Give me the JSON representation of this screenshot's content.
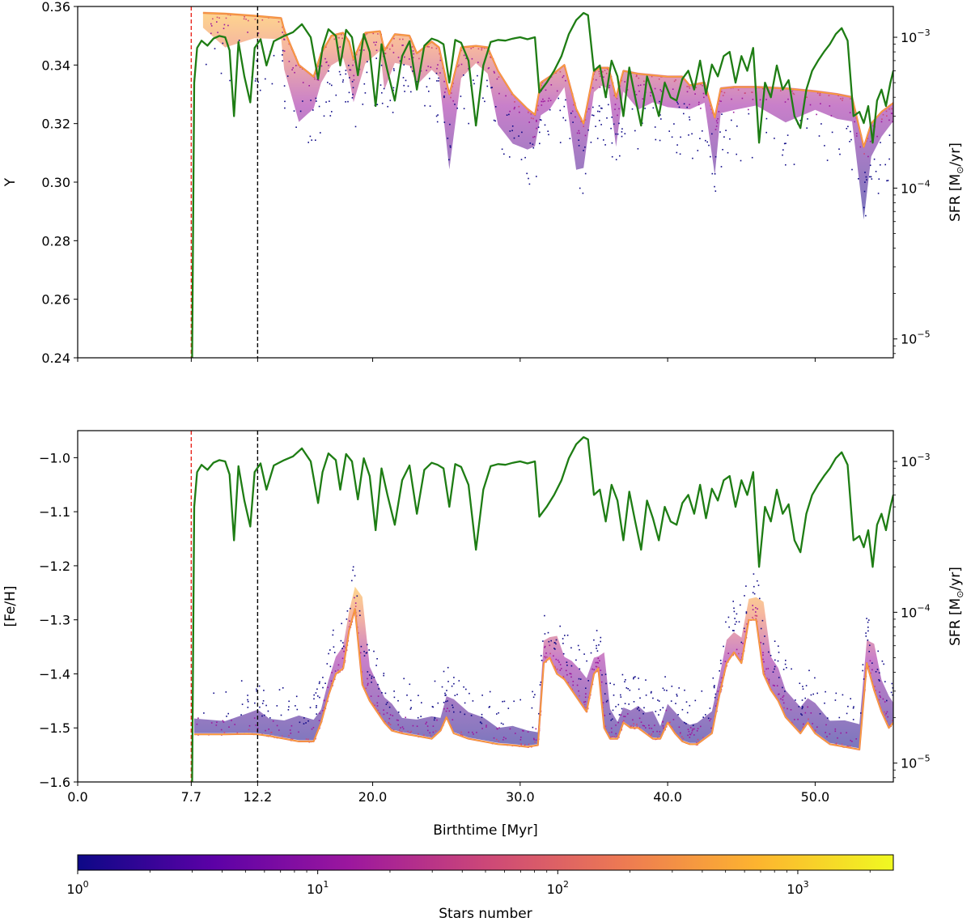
{
  "colors": {
    "sfr_line": "#1e7d14",
    "vline_red": "#e8241c",
    "vline_black": "#000000",
    "cmap": [
      "#0d0887",
      "#5c01a6",
      "#9c179e",
      "#cc4778",
      "#ed7953",
      "#fdb42f",
      "#f0f921"
    ]
  },
  "chart_data": [
    {
      "id": "top",
      "type": "line",
      "title": "",
      "xlabel": "",
      "ylabel": "Y",
      "y2label_prefix": "SFR [M",
      "y2label_unit": "/yr]",
      "xlim": [
        0,
        55.3
      ],
      "ylim": [
        0.24,
        0.36
      ],
      "yticks": [
        0.24,
        0.26,
        0.28,
        0.3,
        0.32,
        0.34,
        0.36
      ],
      "ytick_labels": [
        "0.24",
        "0.26",
        "0.28",
        "0.30",
        "0.32",
        "0.34",
        "0.36"
      ],
      "y2lim": [
        7.5e-06,
        0.0016
      ],
      "y2ticks": [
        1e-05,
        0.0001,
        0.001
      ],
      "y2tick_labels": [
        "10",
        "10",
        "10"
      ],
      "y2tick_exps": [
        "−5",
        "−4",
        "−3"
      ],
      "vlines": [
        7.7,
        12.2
      ],
      "sfr_series": {
        "name": "SFR",
        "x": [
          7.75,
          7.9,
          8.1,
          8.4,
          8.8,
          9.2,
          9.6,
          10.0,
          10.3,
          10.6,
          10.9,
          11.3,
          11.7,
          12.0,
          12.4,
          12.8,
          13.3,
          14.0,
          14.6,
          15.2,
          15.8,
          16.3,
          16.6,
          17.0,
          17.5,
          17.8,
          18.2,
          18.6,
          19.0,
          19.4,
          19.8,
          20.2,
          20.6,
          21.0,
          21.5,
          22.0,
          22.5,
          23.0,
          23.5,
          24.0,
          24.4,
          24.8,
          25.2,
          25.6,
          26.0,
          26.5,
          27.0,
          27.5,
          28.0,
          28.5,
          29.0,
          29.5,
          30.0,
          30.5,
          31.0,
          31.3,
          31.8,
          32.3,
          32.8,
          33.3,
          33.8,
          34.3,
          34.6,
          35.0,
          35.4,
          35.8,
          36.2,
          36.6,
          37.0,
          37.4,
          37.8,
          38.2,
          38.6,
          39.0,
          39.4,
          39.8,
          40.2,
          40.6,
          41.0,
          41.4,
          41.8,
          42.2,
          42.6,
          43.0,
          43.4,
          43.8,
          44.2,
          44.6,
          45.0,
          45.4,
          45.8,
          46.2,
          46.6,
          47.0,
          47.4,
          47.8,
          48.2,
          48.6,
          49.0,
          49.4,
          49.8,
          50.2,
          50.6,
          51.0,
          51.4,
          51.8,
          52.2,
          52.6,
          53.0,
          53.3,
          53.6,
          53.9,
          54.2,
          54.5,
          54.8,
          55.1,
          55.3
        ],
        "y": [
          6e-06,
          0.0005,
          0.00085,
          0.00095,
          0.00088,
          0.00098,
          0.00102,
          0.001,
          0.00082,
          0.0003,
          0.00093,
          0.00055,
          0.00037,
          0.00085,
          0.00097,
          0.00065,
          0.00094,
          0.00102,
          0.00108,
          0.00122,
          0.001,
          0.00053,
          0.00085,
          0.00113,
          0.00102,
          0.00065,
          0.00112,
          0.001,
          0.00056,
          0.00105,
          0.0008,
          0.00035,
          0.0009,
          0.0006,
          0.00038,
          0.00075,
          0.00094,
          0.00045,
          0.00088,
          0.00098,
          0.00095,
          0.0009,
          0.0005,
          0.00096,
          0.00092,
          0.0007,
          0.00026,
          0.00065,
          0.00093,
          0.00096,
          0.00095,
          0.00098,
          0.001,
          0.00097,
          0.001,
          0.00043,
          0.0005,
          0.0006,
          0.00075,
          0.00105,
          0.0013,
          0.00145,
          0.0014,
          0.0006,
          0.00065,
          0.0004,
          0.0007,
          0.00055,
          0.0003,
          0.00063,
          0.0004,
          0.00026,
          0.00055,
          0.00042,
          0.0003,
          0.0005,
          0.0004,
          0.00038,
          0.00053,
          0.0006,
          0.00045,
          0.0007,
          0.00042,
          0.00066,
          0.00055,
          0.00075,
          0.0008,
          0.0005,
          0.00075,
          0.0006,
          0.00085,
          0.0002,
          0.0005,
          0.0004,
          0.00065,
          0.00045,
          0.00052,
          0.0003,
          0.00025,
          0.00045,
          0.0006,
          0.0007,
          0.0008,
          0.0009,
          0.00105,
          0.00115,
          0.00095,
          0.0003,
          0.00032,
          0.00027,
          0.00035,
          0.0002,
          0.00038,
          0.00045,
          0.00035,
          0.0005,
          0.0006
        ]
      },
      "density_ridge": {
        "name": "Y distribution (ridge)",
        "x": [
          8.5,
          10.0,
          12.0,
          13.8,
          14.0,
          15.0,
          16.0,
          16.5,
          17.2,
          18.0,
          18.4,
          18.7,
          19.5,
          20.5,
          20.8,
          21.5,
          22.5,
          23.0,
          24.0,
          24.5,
          25.2,
          26.0,
          27.0,
          27.8,
          28.5,
          29.5,
          30.5,
          31.0,
          31.4,
          32.0,
          33.0,
          33.8,
          34.3,
          35.0,
          35.5,
          36.0,
          36.5,
          37.0,
          38.0,
          39.0,
          40.0,
          41.0,
          41.5,
          42.5,
          43.2,
          43.6,
          44.5,
          46.0,
          48.0,
          50.0,
          51.5,
          52.5,
          53.3,
          53.8,
          54.5,
          55.3
        ],
        "y": [
          0.3578,
          0.3575,
          0.3568,
          0.356,
          0.352,
          0.34,
          0.336,
          0.344,
          0.35,
          0.351,
          0.348,
          0.342,
          0.351,
          0.3515,
          0.345,
          0.3505,
          0.35,
          0.344,
          0.348,
          0.346,
          0.33,
          0.346,
          0.3465,
          0.346,
          0.338,
          0.33,
          0.325,
          0.323,
          0.334,
          0.336,
          0.34,
          0.325,
          0.32,
          0.338,
          0.339,
          0.339,
          0.329,
          0.338,
          0.337,
          0.3365,
          0.336,
          0.336,
          0.333,
          0.334,
          0.322,
          0.332,
          0.3325,
          0.3325,
          0.332,
          0.331,
          0.33,
          0.329,
          0.312,
          0.32,
          0.324,
          0.327
        ]
      }
    },
    {
      "id": "bottom",
      "type": "line",
      "title": "",
      "xlabel": "Birthtime [Myr]",
      "ylabel": "[Fe/H]",
      "y2label_prefix": "SFR [M",
      "y2label_unit": "/yr]",
      "xlim": [
        0,
        55.3
      ],
      "ylim": [
        -1.6,
        -0.95
      ],
      "yticks": [
        -1.6,
        -1.5,
        -1.4,
        -1.3,
        -1.2,
        -1.1,
        -1.0
      ],
      "ytick_labels": [
        "−1.6",
        "−1.5",
        "−1.4",
        "−1.3",
        "−1.2",
        "−1.1",
        "−1.0"
      ],
      "y2lim": [
        7.5e-06,
        0.0016
      ],
      "y2ticks": [
        1e-05,
        0.0001,
        0.001
      ],
      "y2tick_labels": [
        "10",
        "10",
        "10"
      ],
      "y2tick_exps": [
        "−5",
        "−4",
        "−3"
      ],
      "xticks": [
        0.0,
        7.7,
        12.2,
        20.0,
        30.0,
        40.0,
        50.0
      ],
      "xtick_labels": [
        "0.0",
        "7.7",
        "12.2",
        "20.0",
        "30.0",
        "40.0",
        "50.0"
      ],
      "vlines": [
        7.7,
        12.2
      ],
      "sfr_series_ref": "top",
      "density_ridge": {
        "name": "[Fe/H] distribution (ridge)",
        "x": [
          7.9,
          10.0,
          11.5,
          12.2,
          13.0,
          14.0,
          15.0,
          16.0,
          16.5,
          17.0,
          17.5,
          18.0,
          18.4,
          18.8,
          19.3,
          19.8,
          20.3,
          20.8,
          21.3,
          22.0,
          23.0,
          24.0,
          24.6,
          25.0,
          25.5,
          26.5,
          27.5,
          28.5,
          29.5,
          30.5,
          31.2,
          31.6,
          32.0,
          32.5,
          33.0,
          33.5,
          34.0,
          34.5,
          35.0,
          35.3,
          35.7,
          36.1,
          36.6,
          37.0,
          37.5,
          38.0,
          38.5,
          39.0,
          39.5,
          40.0,
          40.5,
          41.0,
          41.5,
          42.0,
          43.0,
          43.5,
          44.0,
          44.5,
          45.0,
          45.5,
          46.0,
          46.5,
          47.0,
          47.5,
          48.0,
          49.0,
          49.5,
          50.0,
          51.0,
          52.0,
          53.0,
          53.5,
          54.0,
          54.5,
          55.0,
          55.3
        ],
        "y": [
          -1.512,
          -1.512,
          -1.511,
          -1.512,
          -1.515,
          -1.52,
          -1.525,
          -1.525,
          -1.49,
          -1.44,
          -1.4,
          -1.39,
          -1.32,
          -1.28,
          -1.42,
          -1.45,
          -1.47,
          -1.49,
          -1.505,
          -1.51,
          -1.515,
          -1.52,
          -1.505,
          -1.48,
          -1.51,
          -1.52,
          -1.525,
          -1.53,
          -1.532,
          -1.535,
          -1.532,
          -1.38,
          -1.37,
          -1.4,
          -1.41,
          -1.43,
          -1.45,
          -1.47,
          -1.4,
          -1.39,
          -1.5,
          -1.52,
          -1.52,
          -1.49,
          -1.5,
          -1.5,
          -1.51,
          -1.52,
          -1.52,
          -1.49,
          -1.51,
          -1.525,
          -1.53,
          -1.53,
          -1.51,
          -1.44,
          -1.38,
          -1.36,
          -1.38,
          -1.3,
          -1.3,
          -1.4,
          -1.43,
          -1.45,
          -1.48,
          -1.51,
          -1.49,
          -1.51,
          -1.53,
          -1.535,
          -1.54,
          -1.38,
          -1.43,
          -1.47,
          -1.5,
          -1.49
        ]
      }
    },
    {
      "id": "colorbar",
      "type": "heatmap",
      "xlabel": "Stars number",
      "scale": "log",
      "range": [
        1,
        2500
      ],
      "ticks": [
        1,
        10,
        100,
        1000
      ],
      "tick_labels": [
        "10",
        "10",
        "10",
        "10"
      ],
      "tick_exps": [
        "0",
        "1",
        "2",
        "3"
      ]
    }
  ]
}
